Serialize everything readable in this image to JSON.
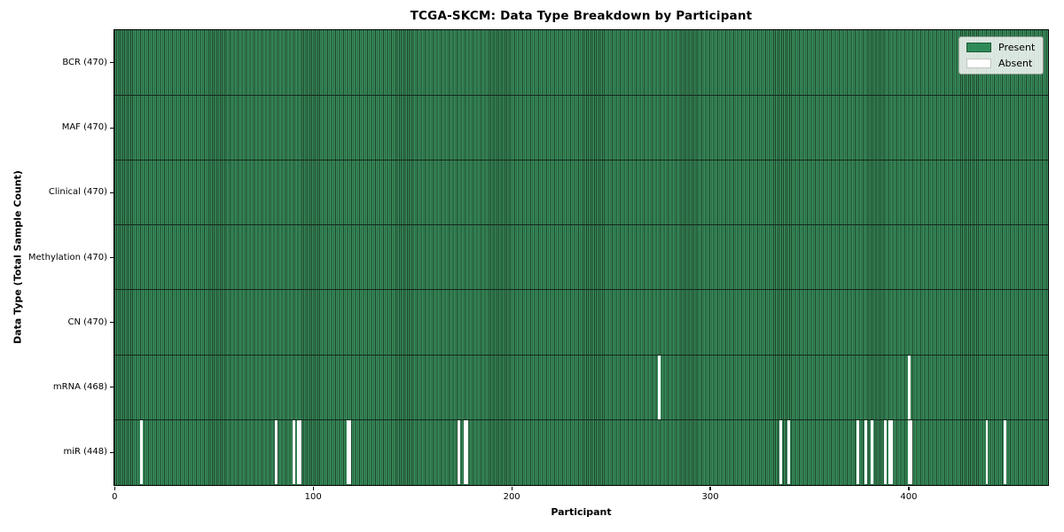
{
  "chart_data": {
    "type": "heatmap",
    "title": "TCGA-SKCM: Data Type Breakdown by Participant",
    "xlabel": "Participant",
    "ylabel": "Data Type (Total Sample Count)",
    "x_ticks": [
      0,
      100,
      200,
      300,
      400
    ],
    "x_range": [
      0,
      470
    ],
    "grid": "row-dividers",
    "legend_position": "upper-right",
    "categories": [
      "BCR (470)",
      "MAF (470)",
      "Clinical (470)",
      "Methylation (470)",
      "CN (470)",
      "mRNA (468)",
      "miR (448)"
    ],
    "rows": [
      {
        "label": "BCR (470)",
        "data_type": "BCR",
        "present_count": 470,
        "absent_participants": []
      },
      {
        "label": "MAF (470)",
        "data_type": "MAF",
        "present_count": 470,
        "absent_participants": []
      },
      {
        "label": "Clinical (470)",
        "data_type": "Clinical",
        "present_count": 470,
        "absent_participants": []
      },
      {
        "label": "Methylation (470)",
        "data_type": "Methylation",
        "present_count": 470,
        "absent_participants": []
      },
      {
        "label": "CN (470)",
        "data_type": "CN",
        "present_count": 470,
        "absent_participants": []
      },
      {
        "label": "mRNA (468)",
        "data_type": "mRNA",
        "present_count": 468,
        "absent_participants": [
          274,
          400
        ]
      },
      {
        "label": "miR (448)",
        "data_type": "miR",
        "present_count": 448,
        "absent_participants": [
          13,
          81,
          90,
          92,
          93,
          117,
          118,
          173,
          176,
          177,
          335,
          339,
          374,
          378,
          381,
          388,
          390,
          391,
          400,
          401,
          439,
          448
        ]
      }
    ],
    "legend": [
      {
        "label": "Present",
        "color": "#2e8b57"
      },
      {
        "label": "Absent",
        "color": "#ffffff"
      }
    ],
    "colors": {
      "present": "#2e8b57",
      "absent": "#ffffff",
      "bar_edge": "#1e4028",
      "row_divider": "#15271a",
      "plot_border": "#000000"
    }
  }
}
